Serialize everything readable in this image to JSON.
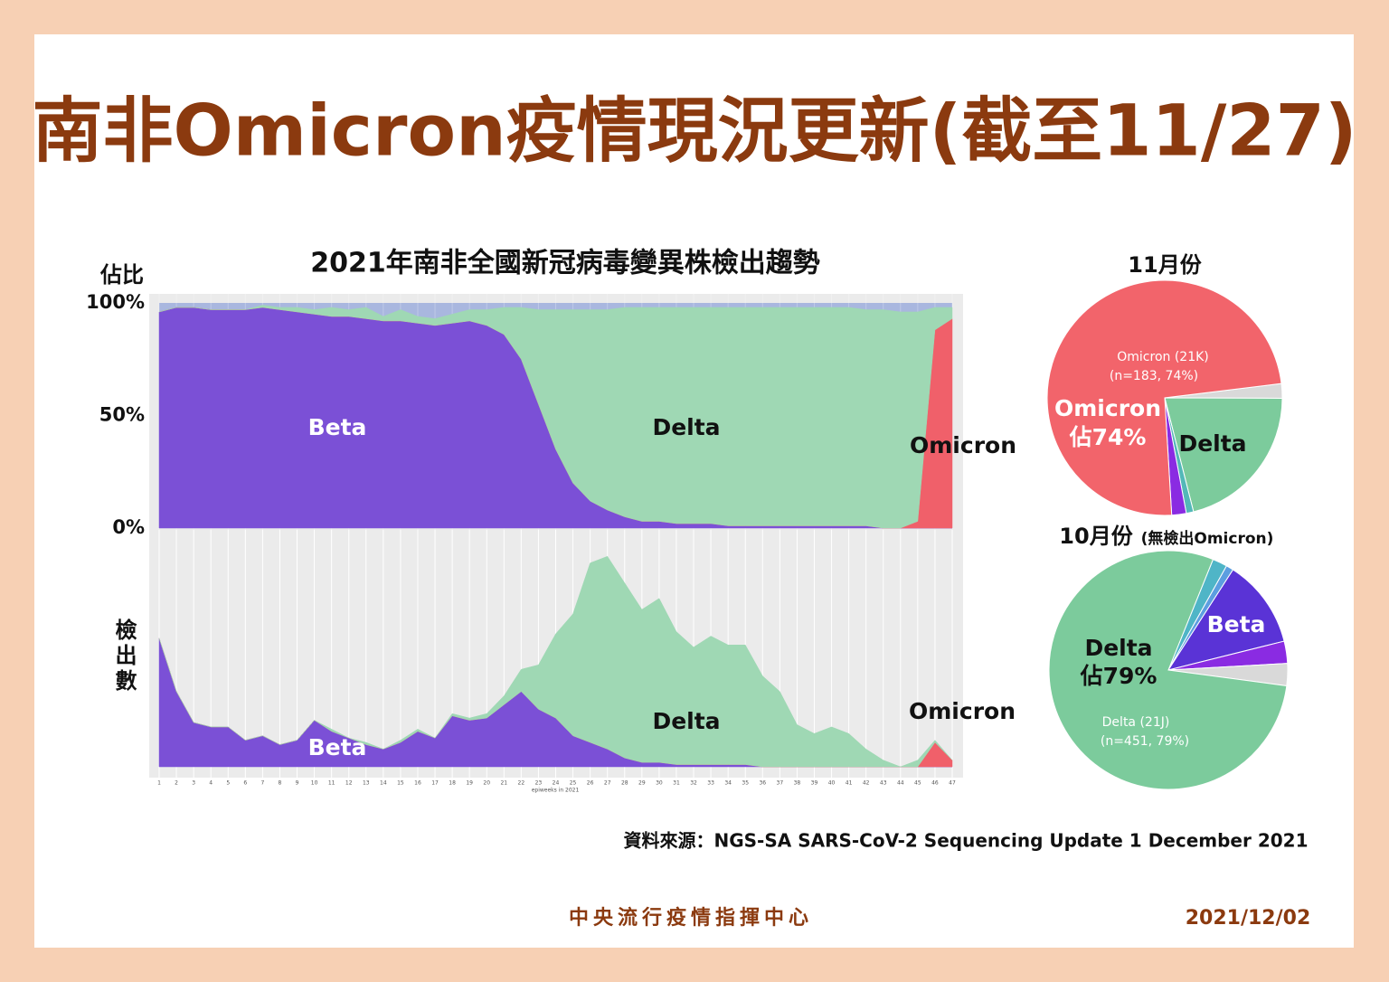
{
  "header": {
    "title": "南非Omicron疫情現況更新(截至11/27)"
  },
  "chart_data": [
    {
      "type": "area",
      "stacked": true,
      "title": "2021年南非全國新冠病毒變異株檢出趨勢",
      "y_label": "佔比",
      "ylim": [
        0,
        100
      ],
      "yticks": [
        {
          "value": 0,
          "label": "0%"
        },
        {
          "value": 50,
          "label": "50%"
        },
        {
          "value": 100,
          "label": "100%"
        }
      ],
      "x": [
        1,
        2,
        3,
        4,
        5,
        6,
        7,
        8,
        9,
        10,
        11,
        12,
        13,
        14,
        15,
        16,
        17,
        18,
        19,
        20,
        21,
        22,
        23,
        24,
        25,
        26,
        27,
        28,
        29,
        30,
        31,
        32,
        33,
        34,
        35,
        36,
        37,
        38,
        39,
        40,
        41,
        42,
        43,
        44,
        45,
        46,
        47
      ],
      "xlim": [
        1,
        47
      ],
      "background_color": "#a9b7df",
      "series": [
        {
          "name": "Beta",
          "color": "#7b50d6",
          "values": [
            96,
            98,
            98,
            97,
            97,
            97,
            98,
            97,
            96,
            95,
            94,
            94,
            93,
            92,
            92,
            91,
            90,
            91,
            92,
            90,
            86,
            75,
            55,
            35,
            20,
            12,
            8,
            5,
            3,
            3,
            2,
            2,
            2,
            1,
            1,
            1,
            1,
            1,
            1,
            1,
            1,
            1,
            0,
            0,
            0,
            0,
            0
          ]
        },
        {
          "name": "Omicron",
          "color": "#f0606a",
          "values": [
            0,
            0,
            0,
            0,
            0,
            0,
            0,
            0,
            0,
            0,
            0,
            0,
            0,
            0,
            0,
            0,
            0,
            0,
            0,
            0,
            0,
            0,
            0,
            0,
            0,
            0,
            0,
            0,
            0,
            0,
            0,
            0,
            0,
            0,
            0,
            0,
            0,
            0,
            0,
            0,
            0,
            0,
            0,
            0,
            3,
            88,
            93
          ]
        },
        {
          "name": "Delta",
          "color": "#9fd8b4",
          "values": [
            0,
            0,
            0,
            0,
            0,
            0,
            1,
            1,
            2,
            2,
            4,
            3,
            5,
            2,
            5,
            3,
            3,
            4,
            5,
            7,
            12,
            23,
            42,
            62,
            77,
            85,
            89,
            93,
            95,
            95,
            96,
            96,
            96,
            97,
            97,
            97,
            97,
            97,
            97,
            97,
            97,
            96,
            97,
            96,
            93,
            10,
            5
          ]
        }
      ]
    },
    {
      "type": "area",
      "stacked": true,
      "y_label": "檢出數",
      "x_label": "epiweeks in 2021",
      "ylim": [
        0,
        100
      ],
      "x": [
        1,
        2,
        3,
        4,
        5,
        6,
        7,
        8,
        9,
        10,
        11,
        12,
        13,
        14,
        15,
        16,
        17,
        18,
        19,
        20,
        21,
        22,
        23,
        24,
        25,
        26,
        27,
        28,
        29,
        30,
        31,
        32,
        33,
        34,
        35,
        36,
        37,
        38,
        39,
        40,
        41,
        42,
        43,
        44,
        45,
        46,
        47
      ],
      "xlim": [
        1,
        47
      ],
      "background_color": "#ebebeb",
      "series": [
        {
          "name": "Beta",
          "color": "#7b50d6",
          "values": [
            58,
            34,
            20,
            18,
            18,
            12,
            14,
            10,
            12,
            21,
            16,
            13,
            10,
            8,
            11,
            16,
            13,
            23,
            21,
            22,
            28,
            34,
            26,
            22,
            14,
            11,
            8,
            4,
            2,
            2,
            1,
            1,
            1,
            1,
            1,
            0,
            0,
            0,
            0,
            0,
            0,
            0,
            0,
            0,
            0,
            0,
            0
          ]
        },
        {
          "name": "Omicron",
          "color": "#f0606a",
          "values": [
            0,
            0,
            0,
            0,
            0,
            0,
            0,
            0,
            0,
            0,
            0,
            0,
            0,
            0,
            0,
            0,
            0,
            0,
            0,
            0,
            0,
            0,
            0,
            0,
            0,
            0,
            0,
            0,
            0,
            0,
            0,
            0,
            0,
            0,
            0,
            0,
            0,
            0,
            0,
            0,
            0,
            0,
            0,
            0,
            0,
            11,
            3
          ]
        },
        {
          "name": "Delta",
          "color": "#9fd8b4",
          "values": [
            0,
            0,
            0,
            0,
            0,
            0,
            0,
            0,
            0,
            0,
            1,
            0,
            1,
            0,
            1,
            1,
            0,
            1,
            1,
            2,
            4,
            10,
            20,
            38,
            55,
            81,
            87,
            79,
            69,
            74,
            60,
            53,
            58,
            54,
            54,
            41,
            34,
            19,
            15,
            18,
            15,
            8,
            3,
            0,
            3,
            1,
            0
          ]
        }
      ]
    },
    {
      "type": "pie",
      "title": "11月份",
      "categories": [
        null,
        "Delta",
        null,
        null,
        "Omicron"
      ],
      "values": [
        2,
        21,
        1,
        2,
        74
      ],
      "colors": [
        "#d9d9d9",
        "#7ccb9c",
        "#53b8b8",
        "#8a2be2",
        "#f2646b"
      ],
      "annotations": [
        "Omicron (21K)",
        "(n=183, 74%)",
        "Omicron",
        "佔74%"
      ]
    },
    {
      "type": "pie",
      "title": "10月份",
      "subtitle": "(無檢出Omicron)",
      "categories": [
        null,
        null,
        "Beta",
        null,
        null,
        "Delta"
      ],
      "values": [
        2,
        1,
        12,
        3,
        3,
        79
      ],
      "colors": [
        "#4fb5c7",
        "#5c9ee0",
        "#5a33d6",
        "#8a2be2",
        "#d9d9d9",
        "#7ccb9c"
      ],
      "annotations": [
        "佔79%",
        "Delta (21J)",
        "(n=451, 79%)"
      ]
    }
  ],
  "footer": {
    "source": "資料來源：NGS-SA SARS-CoV-2 Sequencing Update 1 December 2021",
    "organization": "中央流行疫情指揮中心",
    "date": "2021/12/02"
  }
}
